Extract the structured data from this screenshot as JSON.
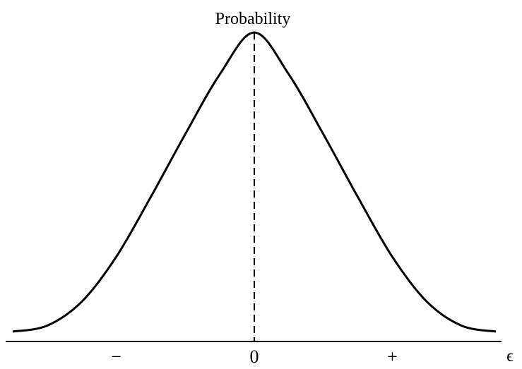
{
  "chart_data": {
    "type": "line",
    "title": "",
    "ylabel": "Probability",
    "xlabel": "ϵ",
    "x_tick_labels": [
      {
        "x": -2,
        "label": "−"
      },
      {
        "x": 0,
        "label": "0"
      },
      {
        "x": 2,
        "label": "+"
      }
    ],
    "xlim": [
      -3.5,
      3.5
    ],
    "ylim": [
      0,
      1
    ],
    "grid": false,
    "legend": "none",
    "reference_line": {
      "x": 0,
      "style": "dashed"
    },
    "series": [
      {
        "x": [
          -3.5,
          -3.0,
          -2.5,
          -2.0,
          -1.5,
          -1.0,
          -0.5,
          0.0,
          0.5,
          1.0,
          1.5,
          2.0,
          2.5,
          3.0,
          3.5
        ],
        "values": [
          0.0,
          0.02,
          0.1,
          0.25,
          0.45,
          0.66,
          0.86,
          1.0,
          0.86,
          0.66,
          0.45,
          0.25,
          0.1,
          0.02,
          0.0
        ]
      }
    ],
    "colors": {
      "curve": "#000000",
      "axis": "#000000",
      "reference": "#000000"
    }
  }
}
